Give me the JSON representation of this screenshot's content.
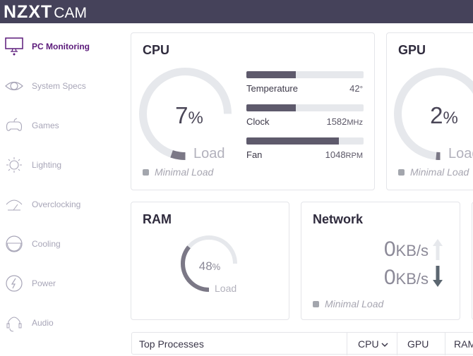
{
  "app": {
    "logo_main": "NZXT",
    "logo_sub": "CAM"
  },
  "sidebar": {
    "items": [
      {
        "label": "PC Monitoring",
        "icon": "monitor-icon",
        "active": true
      },
      {
        "label": "System Specs",
        "icon": "eye-icon"
      },
      {
        "label": "Games",
        "icon": "gamepad-icon"
      },
      {
        "label": "Lighting",
        "icon": "sun-icon"
      },
      {
        "label": "Overclocking",
        "icon": "speedometer-icon"
      },
      {
        "label": "Cooling",
        "icon": "cooling-icon"
      },
      {
        "label": "Power",
        "icon": "power-bolt-icon"
      },
      {
        "label": "Audio",
        "icon": "headset-icon"
      }
    ]
  },
  "cpu": {
    "title": "CPU",
    "load_value": "7",
    "load_pct": 7,
    "unit": "%",
    "load_label": "Load",
    "status": "Minimal Load",
    "metrics": [
      {
        "label": "Temperature",
        "value": "42",
        "unit": "°",
        "fill": 42
      },
      {
        "label": "Clock",
        "value": "1582",
        "unit": "MHz",
        "fill": 42
      },
      {
        "label": "Fan",
        "value": "1048",
        "unit": "RPM",
        "fill": 79
      }
    ]
  },
  "gpu": {
    "title": "GPU",
    "load_value": "2",
    "load_pct": 2,
    "unit": "%",
    "load_label": "Load",
    "status": "Minimal Load"
  },
  "ram": {
    "title": "RAM",
    "load_value": "48",
    "load_pct": 48,
    "unit": "%",
    "load_label": "Load"
  },
  "network": {
    "title": "Network",
    "upload": "0",
    "upload_unit": "KB/s",
    "download": "0",
    "download_unit": "KB/s",
    "status": "Minimal Load"
  },
  "processes": {
    "title": "Top Processes",
    "columns": [
      "CPU",
      "GPU",
      "RAM"
    ],
    "sort_icon": "chevron-down-icon"
  },
  "colors": {
    "header": "#45425a",
    "accent": "#5b1a7a",
    "gauge_fill": "#7b7886",
    "gauge_track": "#e6e8ec"
  }
}
